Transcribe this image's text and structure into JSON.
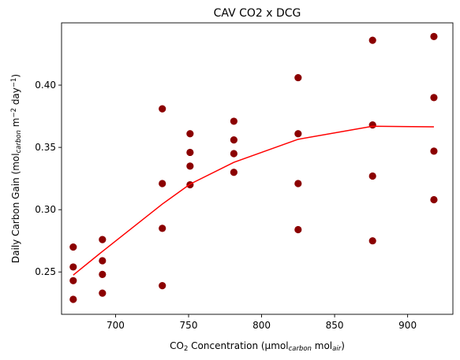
{
  "chart_data": {
    "type": "scatter",
    "title": "CAV CO2 x DCG",
    "xlabel": {
      "parts": [
        {
          "text": "CO",
          "style": "normal"
        },
        {
          "text": "2",
          "style": "sub"
        },
        {
          "text": " Concentration (µmol",
          "style": "normal"
        },
        {
          "text": "carbon",
          "style": "sub-italic"
        },
        {
          "text": " mol",
          "style": "normal"
        },
        {
          "text": "air",
          "style": "sub-italic"
        },
        {
          "text": ")",
          "style": "normal"
        }
      ]
    },
    "ylabel": {
      "parts": [
        {
          "text": "Daily Carbon Gain (mol",
          "style": "normal"
        },
        {
          "text": "carbon",
          "style": "sub-italic"
        },
        {
          "text": " m",
          "style": "normal"
        },
        {
          "text": "−2",
          "style": "sup"
        },
        {
          "text": " day",
          "style": "normal"
        },
        {
          "text": "−1",
          "style": "sup"
        },
        {
          "text": ")",
          "style": "normal"
        }
      ]
    },
    "xlim": [
      663,
      931
    ],
    "ylim": [
      0.216,
      0.45
    ],
    "xticks": [
      700,
      750,
      800,
      850,
      900
    ],
    "yticks": [
      0.25,
      0.3,
      0.35,
      0.4
    ],
    "ytick_labels": [
      "0.25",
      "0.30",
      "0.35",
      "0.40"
    ],
    "grid": false,
    "points": [
      {
        "x": 671,
        "y": 0.27
      },
      {
        "x": 671,
        "y": 0.254
      },
      {
        "x": 671,
        "y": 0.243
      },
      {
        "x": 671,
        "y": 0.228
      },
      {
        "x": 691,
        "y": 0.276
      },
      {
        "x": 691,
        "y": 0.259
      },
      {
        "x": 691,
        "y": 0.248
      },
      {
        "x": 691,
        "y": 0.233
      },
      {
        "x": 732,
        "y": 0.381
      },
      {
        "x": 732,
        "y": 0.321
      },
      {
        "x": 732,
        "y": 0.285
      },
      {
        "x": 732,
        "y": 0.239
      },
      {
        "x": 751,
        "y": 0.361
      },
      {
        "x": 751,
        "y": 0.346
      },
      {
        "x": 751,
        "y": 0.335
      },
      {
        "x": 751,
        "y": 0.32
      },
      {
        "x": 781,
        "y": 0.371
      },
      {
        "x": 781,
        "y": 0.356
      },
      {
        "x": 781,
        "y": 0.345
      },
      {
        "x": 781,
        "y": 0.33
      },
      {
        "x": 825,
        "y": 0.406
      },
      {
        "x": 825,
        "y": 0.361
      },
      {
        "x": 825,
        "y": 0.321
      },
      {
        "x": 825,
        "y": 0.284
      },
      {
        "x": 876,
        "y": 0.436
      },
      {
        "x": 876,
        "y": 0.368
      },
      {
        "x": 876,
        "y": 0.327
      },
      {
        "x": 876,
        "y": 0.275
      },
      {
        "x": 918,
        "y": 0.439
      },
      {
        "x": 918,
        "y": 0.39
      },
      {
        "x": 918,
        "y": 0.347
      },
      {
        "x": 918,
        "y": 0.308
      }
    ],
    "fit_line": {
      "x": [
        671,
        691,
        732,
        751,
        781,
        825,
        876,
        918
      ],
      "y": [
        0.2475,
        0.2665,
        0.3045,
        0.3205,
        0.338,
        0.3565,
        0.367,
        0.3665
      ]
    },
    "colors": {
      "points": "#8b0000",
      "fit_line": "#ff0000",
      "axes": "#000000"
    }
  }
}
